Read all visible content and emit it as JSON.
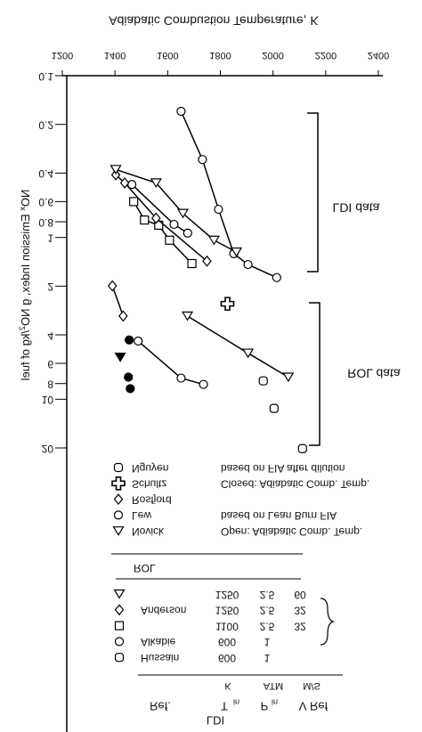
{
  "chart_data": {
    "type": "line",
    "x_label": "Adiabatic Combustion Temperature, K",
    "y_label_parts": [
      "NO",
      "x",
      " Emission Index, g NO",
      "2",
      "/kg of fuel"
    ],
    "xlim": [
      1200,
      2400
    ],
    "xticks": [
      1200,
      1400,
      1600,
      1800,
      2000,
      2200,
      2400
    ],
    "ylim": [
      0.1,
      20
    ],
    "yticks": [
      0.1,
      0.2,
      0.4,
      0.6,
      0.8,
      1,
      2,
      4,
      6,
      8,
      10,
      20
    ],
    "log_y": true,
    "color": "#000000",
    "series": [
      {
        "marker": "square",
        "line": true,
        "x": [
          1471,
          1512,
          1566,
          1607,
          1692
        ],
        "values": [
          0.6,
          0.78,
          0.84,
          1.04,
          1.45
        ]
      },
      {
        "marker": "circle",
        "line": true,
        "x": [
          1651,
          1732,
          1793,
          1851,
          1905,
          2014
        ],
        "values": [
          0.166,
          0.33,
          0.67,
          1.26,
          1.47,
          1.77
        ]
      },
      {
        "marker": "circle",
        "line": true,
        "x": [
          1464,
          1624,
          1676
        ],
        "values": [
          0.47,
          0.83,
          0.94
        ]
      },
      {
        "marker": "diamond",
        "line": true,
        "x": [
          1403,
          1437,
          1556,
          1749
        ],
        "values": [
          0.41,
          0.46,
          0.76,
          1.4
        ]
      },
      {
        "marker": "triangle",
        "line": true,
        "x": [
          1403,
          1556,
          1658,
          1776,
          1861
        ],
        "values": [
          0.38,
          0.46,
          0.71,
          1.04,
          1.23
        ]
      },
      {
        "marker": "diamond",
        "line": true,
        "x": [
          1390,
          1431
        ],
        "values": [
          1.99,
          3.06
        ]
      },
      {
        "marker": "circle",
        "line": true,
        "x": [
          1488,
          1651,
          1736
        ],
        "values": [
          4.37,
          7.4,
          8.1
        ]
      },
      {
        "marker": "circle",
        "filled": true,
        "line": false,
        "x": [
          1454,
          1451,
          1458
        ],
        "values": [
          4.3,
          7.3,
          8.6
        ]
      },
      {
        "marker": "triangle",
        "filled": true,
        "line": false,
        "x": [
          1420
        ],
        "values": [
          5.5
        ]
      },
      {
        "marker": "triangle",
        "line": true,
        "x": [
          1675,
          1905,
          2058
        ],
        "values": [
          3.06,
          5.19,
          7.3
        ]
      },
      {
        "marker": "rsquare",
        "line": false,
        "x": [
          1963,
          2004,
          2112
        ],
        "values": [
          7.7,
          11.4,
          20.2
        ]
      },
      {
        "marker": "cross",
        "line": false,
        "x": [
          1827
        ],
        "values": [
          2.57
        ]
      }
    ],
    "brackets": [
      {
        "label": "LDI data"
      },
      {
        "label": "ROL data"
      }
    ],
    "legend_rol": {
      "title": "ROL",
      "entries": [
        {
          "marker": "rsquare",
          "name": "Nguyen",
          "note": "based on FIA after dilution"
        },
        {
          "marker": "cross",
          "name": "Schultz",
          "note": "Closed: Adiabatic Comb. Temp."
        },
        {
          "marker": "diamond",
          "name": "Rosfjord"
        },
        {
          "marker": "circle",
          "name": "Lew",
          "note": "based on Lean Burn FIA"
        },
        {
          "marker": "triangle",
          "name": "Novick",
          "note": "Open: Adiabatic Comb. Temp."
        }
      ]
    },
    "legend_ldi": {
      "header": {
        "title": "LDI",
        "ref": "Ref.",
        "tin": "T",
        "tin_sub": "in",
        "tin_unit": "K",
        "pin": "P",
        "pin_sub": "in",
        "pin_unit": "ATM",
        "vref": "V Ref",
        "vref_unit": "M/S"
      },
      "rows": [
        {
          "marker": "triangle",
          "tin": "1250",
          "pin": "2.5",
          "vref": "60"
        },
        {
          "marker": "diamond",
          "ref": "Anderson",
          "tin": "1250",
          "pin": "2.5",
          "vref": "32"
        },
        {
          "marker": "square",
          "tin": "1100",
          "pin": "2.5",
          "vref": "32"
        },
        {
          "marker": "circle",
          "ref": "Alkabie",
          "tin": "600",
          "pin": "1"
        },
        {
          "marker": "rsquare",
          "ref": "Hussain",
          "tin": "600",
          "pin": "1"
        }
      ]
    }
  }
}
